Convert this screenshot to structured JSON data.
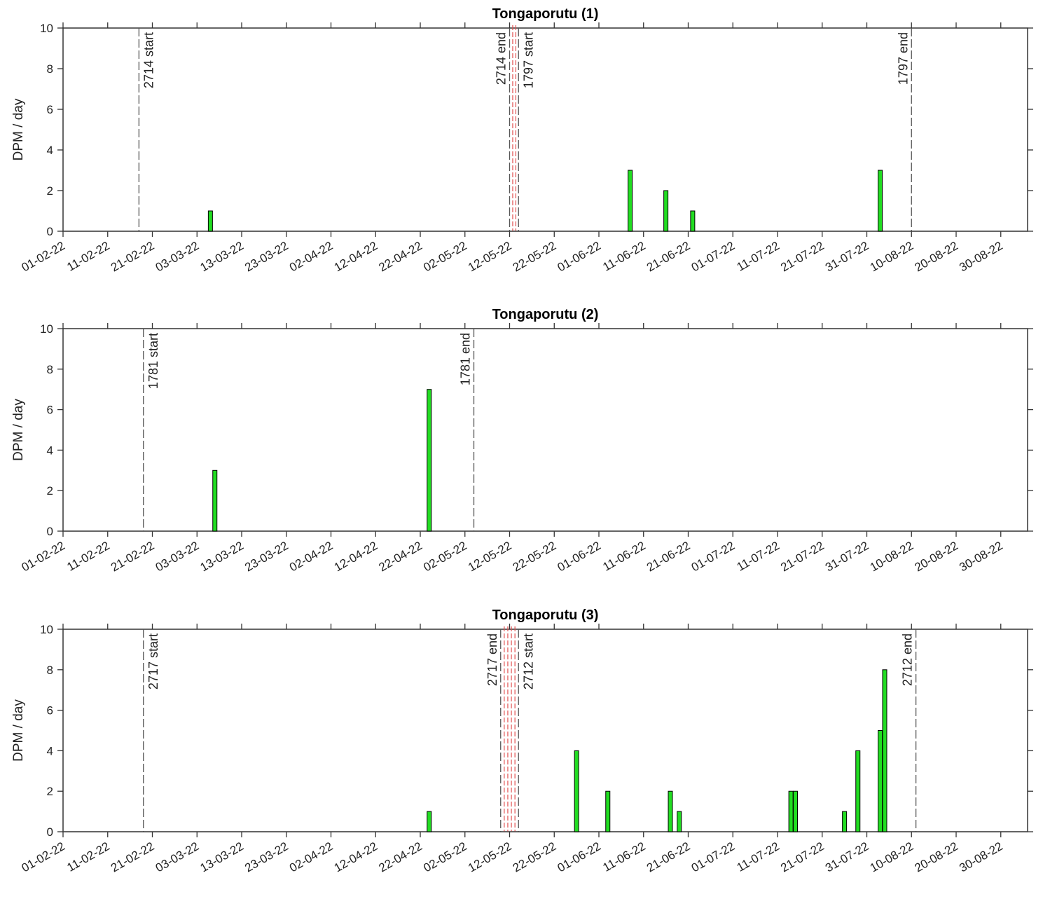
{
  "chart_data": [
    {
      "type": "bar",
      "title": "Tongaporutu (1)",
      "xlabel": "",
      "ylabel": "DPM / day",
      "ylim": [
        0,
        10
      ],
      "yticks": [
        "0",
        "2",
        "4",
        "6",
        "8",
        "10"
      ],
      "xlim": [
        "2022-02-01",
        "2022-09-05"
      ],
      "x_tick_labels": [
        "01-02-22",
        "11-02-22",
        "21-02-22",
        "03-03-22",
        "13-03-22",
        "23-03-22",
        "02-04-22",
        "12-04-22",
        "22-04-22",
        "02-05-22",
        "12-05-22",
        "22-05-22",
        "01-06-22",
        "11-06-22",
        "21-06-22",
        "01-07-22",
        "11-07-22",
        "21-07-22",
        "31-07-22",
        "10-08-22",
        "20-08-22",
        "30-08-22"
      ],
      "grid": false,
      "bar_color": "#22dd22",
      "bars": [
        {
          "date": "2022-03-06",
          "value": 1
        },
        {
          "date": "2022-06-08",
          "value": 3
        },
        {
          "date": "2022-06-16",
          "value": 2
        },
        {
          "date": "2022-06-22",
          "value": 1
        },
        {
          "date": "2022-08-03",
          "value": 3
        }
      ],
      "deployment_lines": [
        {
          "date": "2022-02-18",
          "label": "2714 start",
          "style": "dashed-black",
          "label_side": "right"
        },
        {
          "date": "2022-05-12",
          "label": "2714 end",
          "style": "dashed-black",
          "label_side": "left"
        },
        {
          "date": "2022-05-14",
          "label": "1797 start",
          "style": "dashed-black",
          "label_side": "right"
        },
        {
          "date": "2022-08-10",
          "label": "1797 end",
          "style": "dashed-black",
          "label_side": "left"
        }
      ],
      "gap_lines": [
        {
          "date": "2022-05-12.7",
          "style": "dashed-red"
        },
        {
          "date": "2022-05-13.4",
          "style": "dashed-red"
        }
      ]
    },
    {
      "type": "bar",
      "title": "Tongaporutu (2)",
      "xlabel": "",
      "ylabel": "DPM / day",
      "ylim": [
        0,
        10
      ],
      "yticks": [
        "0",
        "2",
        "4",
        "6",
        "8",
        "10"
      ],
      "xlim": [
        "2022-02-01",
        "2022-09-05"
      ],
      "x_tick_labels": [
        "01-02-22",
        "11-02-22",
        "21-02-22",
        "03-03-22",
        "13-03-22",
        "23-03-22",
        "02-04-22",
        "12-04-22",
        "22-04-22",
        "02-05-22",
        "12-05-22",
        "22-05-22",
        "01-06-22",
        "11-06-22",
        "21-06-22",
        "01-07-22",
        "11-07-22",
        "21-07-22",
        "31-07-22",
        "10-08-22",
        "20-08-22",
        "30-08-22"
      ],
      "grid": false,
      "bar_color": "#22dd22",
      "bars": [
        {
          "date": "2022-03-07",
          "value": 3
        },
        {
          "date": "2022-04-24",
          "value": 7
        }
      ],
      "deployment_lines": [
        {
          "date": "2022-02-19",
          "label": "1781 start",
          "style": "dashed-black",
          "label_side": "right"
        },
        {
          "date": "2022-05-04",
          "label": "1781 end",
          "style": "dashed-black",
          "label_side": "left"
        }
      ],
      "gap_lines": []
    },
    {
      "type": "bar",
      "title": "Tongaporutu (3)",
      "xlabel": "",
      "ylabel": "DPM / day",
      "ylim": [
        0,
        10
      ],
      "yticks": [
        "0",
        "2",
        "4",
        "6",
        "8",
        "10"
      ],
      "xlim": [
        "2022-02-01",
        "2022-09-05"
      ],
      "x_tick_labels": [
        "01-02-22",
        "11-02-22",
        "21-02-22",
        "03-03-22",
        "13-03-22",
        "23-03-22",
        "02-04-22",
        "12-04-22",
        "22-04-22",
        "02-05-22",
        "12-05-22",
        "22-05-22",
        "01-06-22",
        "11-06-22",
        "21-06-22",
        "01-07-22",
        "11-07-22",
        "21-07-22",
        "31-07-22",
        "10-08-22",
        "20-08-22",
        "30-08-22"
      ],
      "grid": false,
      "bar_color": "#22dd22",
      "bars": [
        {
          "date": "2022-04-24",
          "value": 1
        },
        {
          "date": "2022-05-27",
          "value": 4
        },
        {
          "date": "2022-06-03",
          "value": 2
        },
        {
          "date": "2022-06-17",
          "value": 2
        },
        {
          "date": "2022-06-19",
          "value": 1
        },
        {
          "date": "2022-07-14",
          "value": 2
        },
        {
          "date": "2022-07-15",
          "value": 2
        },
        {
          "date": "2022-07-26",
          "value": 1
        },
        {
          "date": "2022-07-29",
          "value": 4
        },
        {
          "date": "2022-08-03",
          "value": 5
        },
        {
          "date": "2022-08-04",
          "value": 8
        }
      ],
      "deployment_lines": [
        {
          "date": "2022-02-19",
          "label": "2717 start",
          "style": "dashed-black",
          "label_side": "right"
        },
        {
          "date": "2022-05-10",
          "label": "2717 end",
          "style": "dashed-black",
          "label_side": "left"
        },
        {
          "date": "2022-05-14",
          "label": "2712 start",
          "style": "dashed-black",
          "label_side": "right"
        },
        {
          "date": "2022-08-11",
          "label": "2712 end",
          "style": "dashed-black",
          "label_side": "left"
        }
      ],
      "gap_lines": [
        {
          "date": "2022-05-10.8",
          "style": "dashed-red"
        },
        {
          "date": "2022-05-11.6",
          "style": "dashed-red"
        },
        {
          "date": "2022-05-12.4",
          "style": "dashed-red"
        },
        {
          "date": "2022-05-13.2",
          "style": "dashed-red"
        }
      ]
    }
  ]
}
